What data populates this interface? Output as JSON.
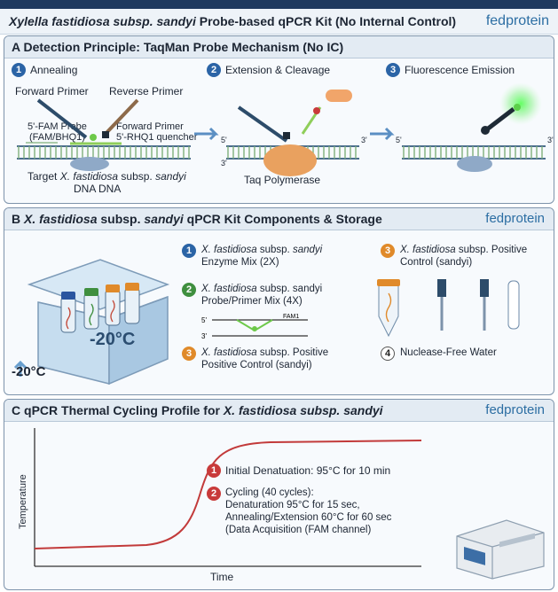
{
  "header": {
    "title_italic": "Xylella fastidiosa subsp. sandyi",
    "title_rest": " Probe-based qPCR Kit (No Internal Control)",
    "brand": "fedprotein"
  },
  "section_a": {
    "letter": "A",
    "title": "Detection Principle: TaqMan Probe Mechanism (No IC)",
    "steps": [
      {
        "num": "1",
        "label": "Annealing"
      },
      {
        "num": "2",
        "label": "Extension & Cleavage"
      },
      {
        "num": "3",
        "label": "Fluorescence Emission"
      }
    ],
    "labels": {
      "forward_primer": "Forward Primer",
      "reverse_primer": "Reverse Primer",
      "probe_line1": "5'-FAM Probe",
      "probe_line2": "(FAM/BHQ1)",
      "forward_primer2": "Forward Primer",
      "quencher": "5'-RHQ1 quencher",
      "target_prefix": "Target ",
      "target_italic": "X. fastidiosa",
      "target_mid": " subsp. ",
      "target_italic2": "sandyi",
      "target_line2": "DNA DNA",
      "taq": "Taq Polymerase",
      "five_prime": "5'",
      "three_prime": "3'"
    }
  },
  "section_b": {
    "letter": "B",
    "title_italic": "X. fastidiosa",
    "title_mid": " subsp. ",
    "title_italic2": "sandyi",
    "title_rest": " qPCR Kit Components & Storage",
    "brand": "fedprotein",
    "temp_box": "-20°C",
    "temp_side": "-20°C",
    "components": [
      {
        "num": "1",
        "italic": "X. fastidiosa",
        "rest": " subsp. ",
        "italic2": "sandyi",
        "line2": "Enzyme Mix (2X)"
      },
      {
        "num": "2",
        "italic": "X. fastidiosa",
        "rest": " subsp. sandyi",
        "italic2": "",
        "line2": "Probe/Primer Mix (4X)"
      },
      {
        "num": "3",
        "italic": "X. fastidiosa",
        "rest": " subsp. Positive",
        "italic2": "",
        "line2": "Positive Control (sandyi)"
      },
      {
        "num": "3",
        "italic": "X. fastidiosa",
        "rest": " subsp. Positive",
        "italic2": "",
        "line2": "Control (sandyi)"
      },
      {
        "num": "4",
        "italic": "",
        "rest": "Nuclease-Free Water",
        "italic2": "",
        "line2": ""
      }
    ],
    "probe_mini": {
      "five": "5'",
      "three": "3'",
      "fam": "FAM1"
    }
  },
  "section_c": {
    "letter": "C",
    "title_rest": "qPCR Thermal Cycling Profile for ",
    "title_italic": "X. fastidiosa subsp. sandyi",
    "brand": "fedprotein",
    "ylabel": "Temperature",
    "xlabel": "Time",
    "steps": [
      {
        "num": "1",
        "lines": [
          "Initial Denatuation: 95°C for 10 min"
        ]
      },
      {
        "num": "2",
        "lines": [
          "Cycling (40 cycles):",
          "Denaturation 95°C for 15 sec,",
          "Annealing/Extension 60°C for 60 sec",
          "(Data Acquisition (FAM channel)"
        ]
      }
    ]
  }
}
